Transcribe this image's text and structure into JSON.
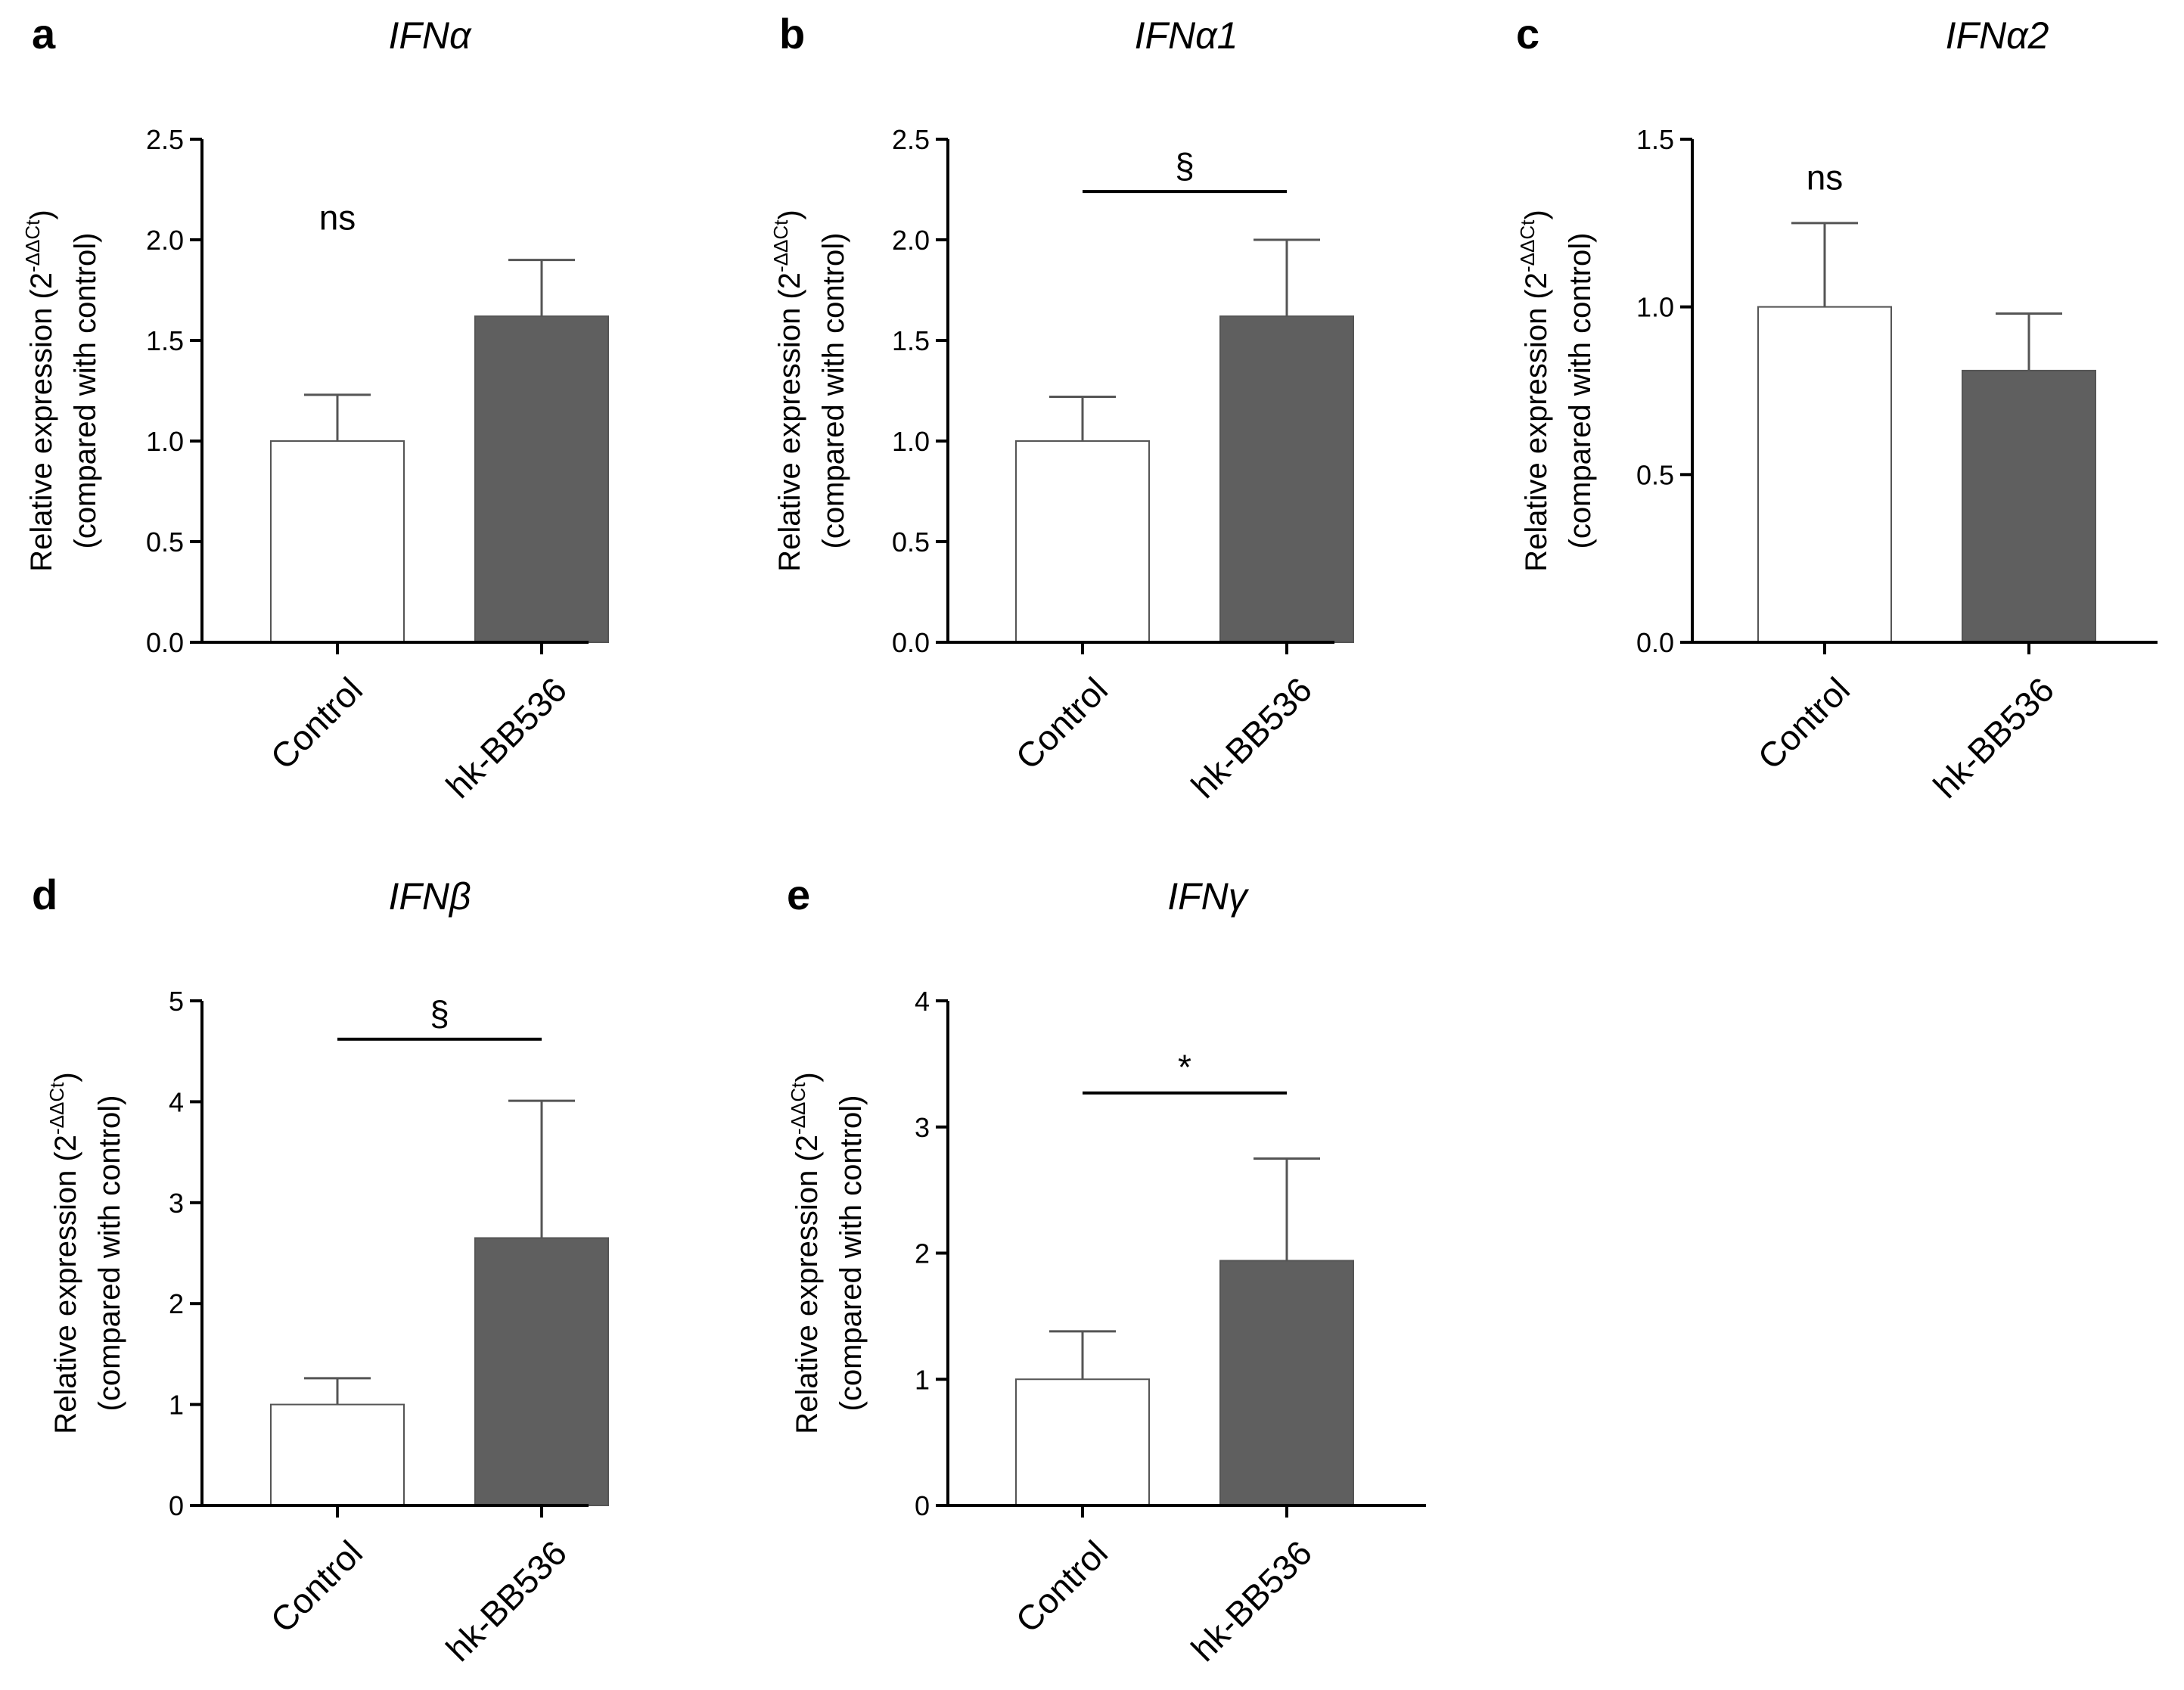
{
  "figure": {
    "ylabel_line1_main": "Relative expression (2",
    "ylabel_line1_sup": "-ΔΔCt",
    "ylabel_line1_close": ")",
    "ylabel_line2": "(compared with control)"
  },
  "chart_data": [
    {
      "panel": "a",
      "title": "IFNα",
      "type": "bar",
      "categories": [
        "Control",
        "hk-BB536"
      ],
      "values": [
        1.0,
        1.62
      ],
      "errors": [
        0.23,
        0.28
      ],
      "colors": [
        "#ffffff",
        "#5f5f5f"
      ],
      "ylim": [
        0,
        2.5
      ],
      "ticks": [
        0.0,
        0.5,
        1.0,
        1.5,
        2.0,
        2.5
      ],
      "tick_labels": [
        "0.0",
        "0.5",
        "1.0",
        "1.5",
        "2.0",
        "2.5"
      ],
      "significance": {
        "label": "ns",
        "bracket": false,
        "y": 2.05
      }
    },
    {
      "panel": "b",
      "title": "IFNα1",
      "type": "bar",
      "categories": [
        "Control",
        "hk-BB536"
      ],
      "values": [
        1.0,
        1.62
      ],
      "errors": [
        0.22,
        0.38
      ],
      "colors": [
        "#ffffff",
        "#5f5f5f"
      ],
      "ylim": [
        0,
        2.5
      ],
      "ticks": [
        0.0,
        0.5,
        1.0,
        1.5,
        2.0,
        2.5
      ],
      "tick_labels": [
        "0.0",
        "0.5",
        "1.0",
        "1.5",
        "2.0",
        "2.5"
      ],
      "significance": {
        "label": "§",
        "bracket": true,
        "y": 2.24
      }
    },
    {
      "panel": "c",
      "title": "IFNα2",
      "type": "bar",
      "categories": [
        "Control",
        "hk-BB536"
      ],
      "values": [
        1.0,
        0.81
      ],
      "errors": [
        0.25,
        0.17
      ],
      "colors": [
        "#ffffff",
        "#5f5f5f"
      ],
      "ylim": [
        0,
        1.5
      ],
      "ticks": [
        0.0,
        0.5,
        1.0,
        1.5
      ],
      "tick_labels": [
        "0.0",
        "0.5",
        "1.0",
        "1.5"
      ],
      "significance": {
        "label": "ns",
        "bracket": false,
        "y": 1.35
      }
    },
    {
      "panel": "d",
      "title": "IFNβ",
      "type": "bar",
      "categories": [
        "Control",
        "hk-BB536"
      ],
      "values": [
        1.0,
        2.65
      ],
      "errors": [
        0.26,
        1.36
      ],
      "colors": [
        "#ffffff",
        "#5f5f5f"
      ],
      "ylim": [
        0,
        5
      ],
      "ticks": [
        0,
        1,
        2,
        3,
        4,
        5
      ],
      "tick_labels": [
        "0",
        "1",
        "2",
        "3",
        "4",
        "5"
      ],
      "significance": {
        "label": "§",
        "bracket": true,
        "y": 4.62
      }
    },
    {
      "panel": "e",
      "title": "IFNγ",
      "type": "bar",
      "categories": [
        "Control",
        "hk-BB536"
      ],
      "values": [
        1.0,
        1.94
      ],
      "errors": [
        0.38,
        0.81
      ],
      "colors": [
        "#ffffff",
        "#5f5f5f"
      ],
      "ylim": [
        0,
        4
      ],
      "ticks": [
        0,
        1,
        2,
        3,
        4
      ],
      "tick_labels": [
        "0",
        "1",
        "2",
        "3",
        "4"
      ],
      "significance": {
        "label": "*",
        "bracket": true,
        "y": 3.27
      }
    }
  ]
}
